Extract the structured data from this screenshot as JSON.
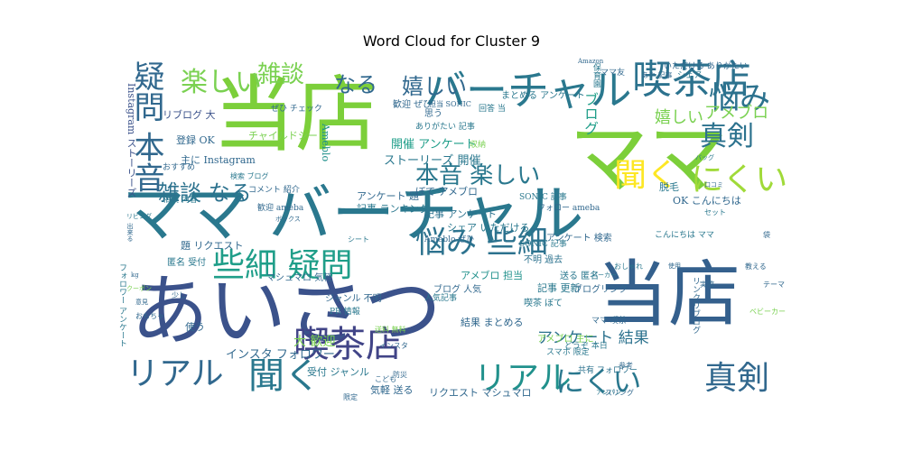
{
  "chart_data": {
    "type": "wordcloud",
    "title": "Word Cloud for Cluster 9",
    "palette": "viridis",
    "words": [
      {
        "text": "当店",
        "size": 92,
        "color": "#7ccf3a"
      },
      {
        "text": "ママ",
        "size": 88,
        "color": "#7ccf3a"
      },
      {
        "text": "あいさつ",
        "size": 86,
        "color": "#3b528b"
      },
      {
        "text": "当店",
        "size": 80,
        "color": "#34608d"
      },
      {
        "text": "ママ バーチャル",
        "size": 70,
        "color": "#2a788e"
      },
      {
        "text": "バーチャル",
        "size": 46,
        "color": "#2a788e"
      },
      {
        "text": "喫茶店",
        "size": 44,
        "color": "#2c728e"
      },
      {
        "text": "喫茶店",
        "size": 40,
        "color": "#414487"
      },
      {
        "text": "リアル",
        "size": 36,
        "color": "#31688e"
      },
      {
        "text": "リアル",
        "size": 36,
        "color": "#21918c"
      },
      {
        "text": "聞く",
        "size": 40,
        "color": "#2a788e"
      },
      {
        "text": "聞く",
        "size": 36,
        "color": "#fde725"
      },
      {
        "text": "にくい",
        "size": 36,
        "color": "#a0da39"
      },
      {
        "text": "にくい",
        "size": 32,
        "color": "#2a788e"
      },
      {
        "text": "真剣",
        "size": 36,
        "color": "#31688e"
      },
      {
        "text": "真剣",
        "size": 30,
        "color": "#2c728e"
      },
      {
        "text": "悩み",
        "size": 34,
        "color": "#2c728e"
      },
      {
        "text": "悩み 些細",
        "size": 34,
        "color": "#2c728e"
      },
      {
        "text": "些細 疑問",
        "size": 36,
        "color": "#1f9e89"
      },
      {
        "text": "疑問 本音",
        "size": 34,
        "color": "#31688e"
      },
      {
        "text": "本音 楽しい",
        "size": 26,
        "color": "#2a788e"
      },
      {
        "text": "楽しい",
        "size": 30,
        "color": "#7ad151"
      },
      {
        "text": "雑談",
        "size": 26,
        "color": "#7ad151"
      },
      {
        "text": "雑談 なる",
        "size": 24,
        "color": "#2c728e"
      },
      {
        "text": "なる",
        "size": 24,
        "color": "#31688e"
      },
      {
        "text": "嬉しい",
        "size": 24,
        "color": "#31688e"
      },
      {
        "text": "嬉しい",
        "size": 18,
        "color": "#7ad151"
      },
      {
        "text": "アメブロ",
        "size": 18,
        "color": "#7ad151"
      },
      {
        "text": "ブログ",
        "size": 16,
        "color": "#1f9e89"
      },
      {
        "text": "ストーリーズ 開催",
        "size": 13,
        "color": "#2a788e"
      },
      {
        "text": "開催 アンケート",
        "size": 13,
        "color": "#1f9e89"
      },
      {
        "text": "ありがたい 記事",
        "size": 9,
        "color": "#2a788e"
      },
      {
        "text": "大 歓迎",
        "size": 14,
        "color": "#7ad151"
      },
      {
        "text": "インスタ フォロワー",
        "size": 13,
        "color": "#31688e"
      },
      {
        "text": "アンケート 結果",
        "size": 17,
        "color": "#2c728e"
      },
      {
        "text": "アンケート 題",
        "size": 11,
        "color": "#31688e"
      },
      {
        "text": "記事 ランキング",
        "size": 11,
        "color": "#2a788e"
      },
      {
        "text": "チャイルドシート",
        "size": 11,
        "color": "#7ad151"
      },
      {
        "text": "リブログ 大",
        "size": 11,
        "color": "#3b528b"
      },
      {
        "text": "登録 OK",
        "size": 11,
        "color": "#31688e"
      },
      {
        "text": "主に Instagram",
        "size": 11,
        "color": "#31688e"
      },
      {
        "text": "Ameblo",
        "size": 11,
        "color": "#21918c"
      },
      {
        "text": "思う",
        "size": 10,
        "color": "#31688e"
      },
      {
        "text": "歓迎 ぜひ",
        "size": 10,
        "color": "#31688e"
      },
      {
        "text": "回答 当",
        "size": 9,
        "color": "#2a788e"
      },
      {
        "text": "収納",
        "size": 9,
        "color": "#7ad151"
      },
      {
        "text": "まとめる アンケート",
        "size": 10,
        "color": "#2a788e"
      },
      {
        "text": "ママ友",
        "size": 9,
        "color": "#31688e"
      },
      {
        "text": "シェア",
        "size": 9,
        "color": "#2a788e"
      },
      {
        "text": "いただける ありがたい",
        "size": 9,
        "color": "#31688e"
      },
      {
        "text": "Instagram ストーリーズ",
        "size": 11,
        "color": "#3b528b"
      },
      {
        "text": "おすすめ",
        "size": 9,
        "color": "#31688e"
      },
      {
        "text": "相談 内容",
        "size": 9,
        "color": "#2a788e"
      },
      {
        "text": "脱毛",
        "size": 11,
        "color": "#2a788e"
      },
      {
        "text": "OK こんにちは",
        "size": 11,
        "color": "#31688e"
      },
      {
        "text": "SONIC 記事",
        "size": 9,
        "color": "#2a788e"
      },
      {
        "text": "ぼて アメブロ",
        "size": 11,
        "color": "#31688e"
      },
      {
        "text": "記事 アンケート",
        "size": 11,
        "color": "#2c728e"
      },
      {
        "text": "シェア いただける",
        "size": 11,
        "color": "#2a788e"
      },
      {
        "text": "題 リクエスト",
        "size": 11,
        "color": "#31688e"
      },
      {
        "text": "匿名 受付",
        "size": 10,
        "color": "#2a788e"
      },
      {
        "text": "マシュマロ 気軽",
        "size": 10,
        "color": "#31688e"
      },
      {
        "text": "アメブロ 担当",
        "size": 11,
        "color": "#21918c"
      },
      {
        "text": "記事 更新",
        "size": 11,
        "color": "#2a788e"
      },
      {
        "text": "不明 過去",
        "size": 10,
        "color": "#2c728e"
      },
      {
        "text": "アンケート 検索",
        "size": 10,
        "color": "#31688e"
      },
      {
        "text": "送る 匿名",
        "size": 10,
        "color": "#2a788e"
      },
      {
        "text": "ブログリンク",
        "size": 10,
        "color": "#31688e"
      },
      {
        "text": "使う",
        "size": 11,
        "color": "#31688e"
      },
      {
        "text": "結果 まとめる",
        "size": 11,
        "color": "#31688e"
      },
      {
        "text": "受付 ジャンル",
        "size": 11,
        "color": "#2a788e"
      },
      {
        "text": "気軽 送る",
        "size": 11,
        "color": "#31688e"
      },
      {
        "text": "リクエスト マシュマロ",
        "size": 11,
        "color": "#31688e"
      },
      {
        "text": "ブログ 人気",
        "size": 10,
        "color": "#31688e"
      },
      {
        "text": "喫茶 ぼて",
        "size": 10,
        "color": "#2a788e"
      },
      {
        "text": "アメブロ 主に",
        "size": 10,
        "color": "#7ad151"
      },
      {
        "text": "どうぞ 本日",
        "size": 9,
        "color": "#2a788e"
      },
      {
        "text": "共有 フォロワー",
        "size": 9,
        "color": "#2c728e"
      },
      {
        "text": "ママ 喫茶",
        "size": 9,
        "color": "#31688e"
      },
      {
        "text": "こんにちは ママ",
        "size": 9,
        "color": "#2a788e"
      },
      {
        "text": "ぜひ チェック",
        "size": 9,
        "color": "#31688e"
      },
      {
        "text": "担当 SONIC",
        "size": 8,
        "color": "#31688e"
      },
      {
        "text": "コメント 紹介",
        "size": 9,
        "color": "#31688e"
      },
      {
        "text": "検索 ブログ",
        "size": 8,
        "color": "#2a788e"
      },
      {
        "text": "フォロー ameba",
        "size": 9,
        "color": "#31688e"
      },
      {
        "text": "歓迎 ameba",
        "size": 9,
        "color": "#31688e"
      },
      {
        "text": "Ameblo ぜひ",
        "size": 9,
        "color": "#31688e"
      },
      {
        "text": "SONIC 記事",
        "size": 9,
        "color": "#2a788e"
      },
      {
        "text": "あや 記事",
        "size": 8,
        "color": "#31688e"
      },
      {
        "text": "フォロワー アンケート",
        "size": 9,
        "color": "#2a788e"
      },
      {
        "text": "ジャンル 不明",
        "size": 10,
        "color": "#31688e"
      },
      {
        "text": "人気記事",
        "size": 9,
        "color": "#2a788e"
      },
      {
        "text": "PR 情報",
        "size": 9,
        "color": "#2a788e"
      },
      {
        "text": "送料 無料",
        "size": 8,
        "color": "#7ad151"
      },
      {
        "text": "インスタ",
        "size": 8,
        "color": "#31688e"
      },
      {
        "text": "スマホ 限定",
        "size": 9,
        "color": "#2a788e"
      },
      {
        "text": "リンクリブログ",
        "size": 9,
        "color": "#31688e"
      },
      {
        "text": "Amazon",
        "size": 7,
        "color": "#31688e"
      },
      {
        "text": "保育園",
        "size": 9,
        "color": "#2a788e"
      },
      {
        "text": "テーマ",
        "size": 8,
        "color": "#31688e"
      },
      {
        "text": "おもちゃ",
        "size": 8,
        "color": "#31688e"
      },
      {
        "text": "ベビーカー",
        "size": 8,
        "color": "#7ad151"
      },
      {
        "text": "スリング",
        "size": 8,
        "color": "#31688e"
      },
      {
        "text": "シート",
        "size": 8,
        "color": "#2a788e"
      },
      {
        "text": "ボックス",
        "size": 7,
        "color": "#31688e"
      },
      {
        "text": "少し",
        "size": 8,
        "color": "#31688e"
      },
      {
        "text": "参考",
        "size": 8,
        "color": "#31688e"
      },
      {
        "text": "おしゃれ",
        "size": 8,
        "color": "#2a788e"
      },
      {
        "text": "実際",
        "size": 8,
        "color": "#31688e"
      },
      {
        "text": "パーカー",
        "size": 7,
        "color": "#2a788e"
      },
      {
        "text": "教える",
        "size": 8,
        "color": "#31688e"
      },
      {
        "text": "セット",
        "size": 8,
        "color": "#2a788e"
      },
      {
        "text": "こども",
        "size": 8,
        "color": "#31688e"
      },
      {
        "text": "防災",
        "size": 8,
        "color": "#31688e"
      },
      {
        "text": "限定",
        "size": 8,
        "color": "#31688e"
      },
      {
        "text": "意見",
        "size": 7,
        "color": "#31688e"
      },
      {
        "text": "リビング",
        "size": 7,
        "color": "#2a788e"
      },
      {
        "text": "kg",
        "size": 7,
        "color": "#31688e"
      },
      {
        "text": "クーポン",
        "size": 7,
        "color": "#7ad151"
      },
      {
        "text": "アンパン",
        "size": 7,
        "color": "#2a788e"
      },
      {
        "text": "袋",
        "size": 8,
        "color": "#31688e"
      },
      {
        "text": "使用",
        "size": 7,
        "color": "#31688e"
      },
      {
        "text": "出来る",
        "size": 7,
        "color": "#31688e"
      },
      {
        "text": "口コミ",
        "size": 7,
        "color": "#31688e"
      },
      {
        "text": "バッグ",
        "size": 7,
        "color": "#2a788e"
      }
    ]
  }
}
